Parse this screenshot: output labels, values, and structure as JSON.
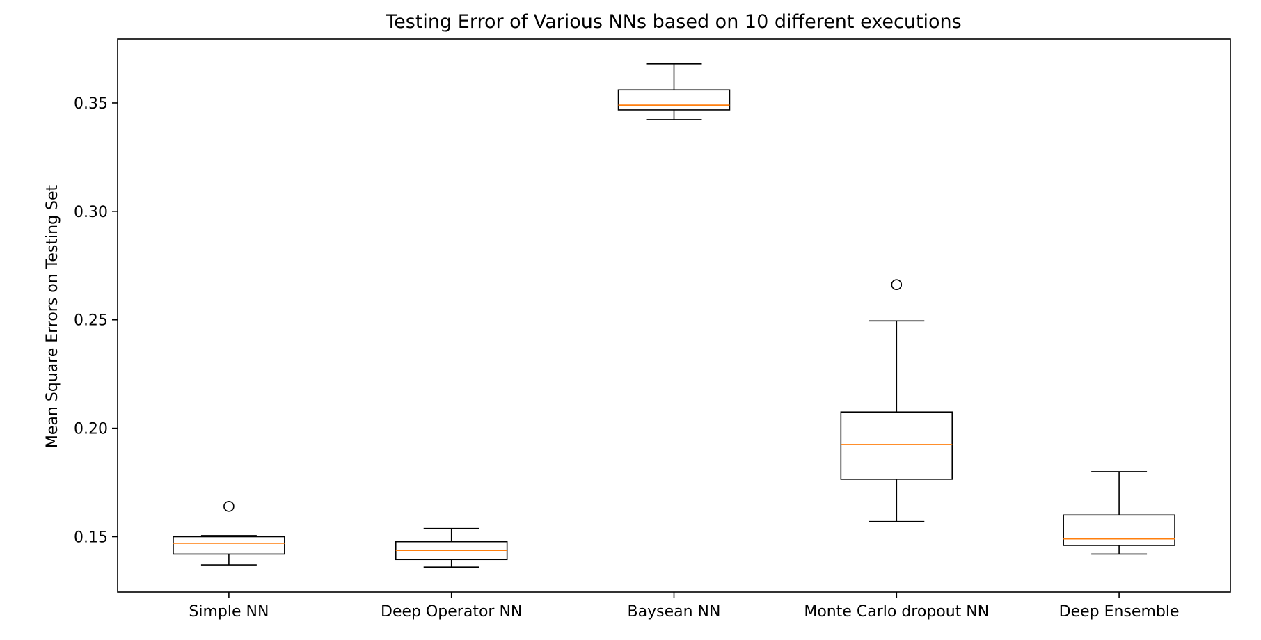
{
  "chart_data": {
    "type": "box",
    "title": "Testing Error of Various NNs based on 10 different executions",
    "xlabel": "",
    "ylabel": "Mean Square Errors on Testing Set",
    "ylim": [
      0.1245,
      0.3795
    ],
    "yticks": [
      0.15,
      0.2,
      0.25,
      0.3,
      0.35
    ],
    "ytick_labels": [
      "0.15",
      "0.20",
      "0.25",
      "0.30",
      "0.35"
    ],
    "grid": false,
    "categories": [
      "Simple NN",
      "Deep Operator NN",
      "Baysean NN",
      "Monte Carlo dropout NN",
      "Deep Ensemble"
    ],
    "boxes": [
      {
        "whisker_low": 0.137,
        "q1": 0.142,
        "median": 0.147,
        "q3": 0.15,
        "whisker_high": 0.1505,
        "outliers": [
          0.164
        ]
      },
      {
        "whisker_low": 0.136,
        "q1": 0.1395,
        "median": 0.1437,
        "q3": 0.1477,
        "whisker_high": 0.1538,
        "outliers": []
      },
      {
        "whisker_low": 0.3423,
        "q1": 0.3468,
        "median": 0.349,
        "q3": 0.356,
        "whisker_high": 0.368,
        "outliers": []
      },
      {
        "whisker_low": 0.157,
        "q1": 0.1765,
        "median": 0.1925,
        "q3": 0.2075,
        "whisker_high": 0.2495,
        "outliers": [
          0.2662
        ]
      },
      {
        "whisker_low": 0.142,
        "q1": 0.146,
        "median": 0.149,
        "q3": 0.16,
        "whisker_high": 0.18,
        "outliers": []
      }
    ],
    "colors": {
      "box": "#000000",
      "median": "#ff7f0e",
      "background": "#ffffff"
    }
  }
}
